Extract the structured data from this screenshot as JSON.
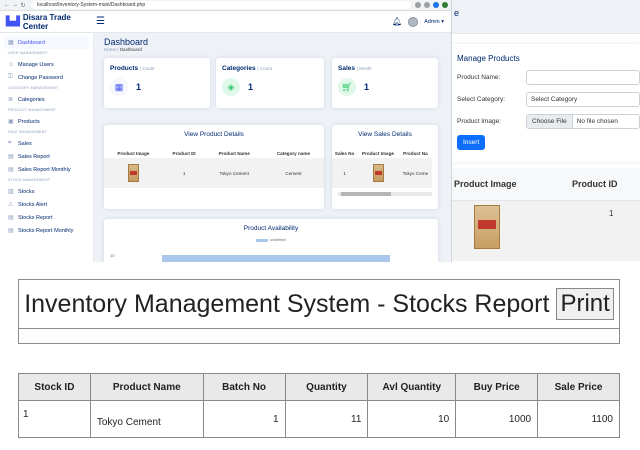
{
  "browser": {
    "url": "localhost/Inventory-System-main/Dashboard.php"
  },
  "topbar": {
    "brand": "Disara Trade Center",
    "user": "Admin ▾"
  },
  "sidebar": {
    "items": [
      {
        "type": "item",
        "label": "Dashboard",
        "icon": "grid-icon",
        "active": true
      },
      {
        "type": "head",
        "label": "USER MANAGEMENT"
      },
      {
        "type": "item",
        "label": "Manage Users",
        "icon": "person-icon"
      },
      {
        "type": "item",
        "label": "Change Password",
        "icon": "key-icon"
      },
      {
        "type": "head",
        "label": "CATEGORY MANAGEMENT"
      },
      {
        "type": "item",
        "label": "Categories",
        "icon": "list-icon"
      },
      {
        "type": "head",
        "label": "PRODUCT MANAGEMENT"
      },
      {
        "type": "item",
        "label": "Products",
        "icon": "box-icon"
      },
      {
        "type": "head",
        "label": "SALE MANAGEMENT"
      },
      {
        "type": "item",
        "label": "Sales",
        "icon": "tag-icon"
      },
      {
        "type": "item",
        "label": "Sales Report",
        "icon": "file-icon"
      },
      {
        "type": "item",
        "label": "Sales Report Monthly",
        "icon": "file-icon"
      },
      {
        "type": "head",
        "label": "STOCK MANAGEMENT"
      },
      {
        "type": "item",
        "label": "Stocks",
        "icon": "stack-icon"
      },
      {
        "type": "item",
        "label": "Stocks Alert",
        "icon": "alert-icon"
      },
      {
        "type": "item",
        "label": "Stocks Report",
        "icon": "file-icon"
      },
      {
        "type": "item",
        "label": "Stocks Report Monthly",
        "icon": "file-icon"
      }
    ]
  },
  "dashboard": {
    "title": "Dashboard",
    "breadcrumb": {
      "home": "Home",
      "sep": "/",
      "current": "Dashboard"
    },
    "cards": [
      {
        "title": "Products",
        "sub": "| Count",
        "value": "1",
        "icon": "grid-icon",
        "color": "#4154f1",
        "bg": "#f6f6fe"
      },
      {
        "title": "Categories",
        "sub": "| Count",
        "value": "1",
        "icon": "layers-icon",
        "color": "#2eca6a",
        "bg": "#e0f8e9"
      },
      {
        "title": "Sales",
        "sub": "| Month",
        "value": "1",
        "icon": "cart-icon",
        "color": "#2eca6a",
        "bg": "#e0f8e9"
      }
    ],
    "product_details": {
      "title": "View Product Details",
      "headers": [
        "Product Image",
        "Product ID",
        "Product Name",
        "Category name"
      ],
      "row": {
        "id": "1",
        "name": "Tokyo Cement",
        "category": "Cement"
      }
    },
    "sales_details": {
      "title": "View Sales Details",
      "headers": [
        "Sales No",
        "Product Image",
        "Product Na"
      ],
      "row": {
        "no": "1",
        "name": "Tokyo Ceme"
      }
    },
    "availability": {
      "title": "Product Availability",
      "legend": "undefined",
      "tick": "10"
    }
  },
  "manage_products": {
    "title": "Manage Products",
    "labels": {
      "name": "Product Name:",
      "category": "Select Category:",
      "image": "Product Image:"
    },
    "category_value": "Select Category",
    "file_button": "Choose File",
    "file_name": "No file chosen",
    "insert": "Insert",
    "table": {
      "headers": [
        "Product Image",
        "Product ID"
      ],
      "row_id": "1"
    }
  },
  "report": {
    "title": "Inventory Management System - Stocks Report",
    "print": "Print",
    "headers": [
      "Stock ID",
      "Product Name",
      "Batch No",
      "Quantity",
      "Avl Quantity",
      "Buy Price",
      "Sale Price"
    ],
    "rows": [
      [
        "1",
        "Tokyo Cement",
        "1",
        "11",
        "10",
        "1000",
        "1100"
      ]
    ]
  }
}
